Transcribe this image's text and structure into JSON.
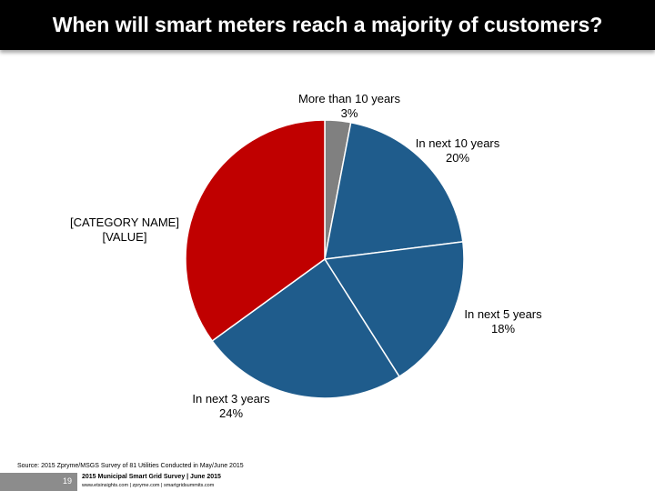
{
  "header": {
    "title": "When will smart meters reach a majority of customers?"
  },
  "chart_data": {
    "type": "pie",
    "title": "",
    "start_angle_deg": 0,
    "direction": "clockwise",
    "slices": [
      {
        "label": "More than 10 years",
        "value_label": "3%",
        "value": 3,
        "color": "#808080"
      },
      {
        "label": "In next 10 years",
        "value_label": "20%",
        "value": 20,
        "color": "#1f5c8c"
      },
      {
        "label": "In next 5 years",
        "value_label": "18%",
        "value": 18,
        "color": "#1f5c8c"
      },
      {
        "label": "In next 3 years",
        "value_label": "24%",
        "value": 24,
        "color": "#1f5c8c"
      },
      {
        "label": "[CATEGORY NAME]",
        "value_label": "[VALUE]",
        "value": 35,
        "color": "#c00000"
      }
    ]
  },
  "source": "Source: 2015 Zpryme/MSGS Survey of 81 Utilities Conducted in May/June 2015",
  "footer": {
    "page_number": "19",
    "title": "2015 Municipal Smart Grid Survey | June 2015",
    "links": "www.etsinsights.com | zpryme.com | smartgridsummits.com"
  }
}
